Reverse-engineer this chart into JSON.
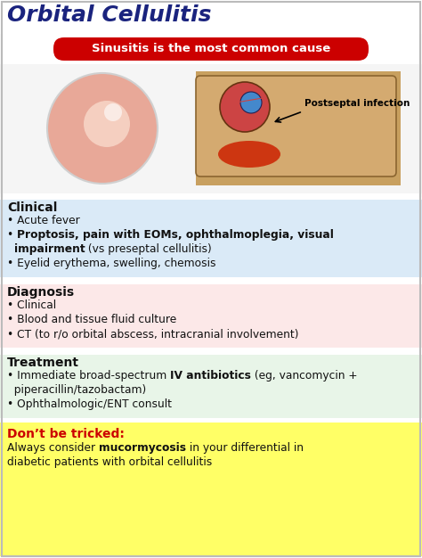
{
  "title": "Orbital Cellulitis",
  "title_color": "#1a237e",
  "banner_text": "Sinusitis is the most common cause",
  "banner_bg": "#cc0000",
  "banner_text_color": "#ffffff",
  "clinical_heading": "Clinical",
  "clinical_bg": "#daeaf7",
  "clinical_bullets": [
    {
      "parts": [
        {
          "t": "• Acute fever",
          "b": false
        }
      ]
    },
    {
      "parts": [
        {
          "t": "• ",
          "b": false
        },
        {
          "t": "Proptosis, pain with EOMs, ophthalmoplegia, visual",
          "b": true
        }
      ]
    },
    {
      "parts": [
        {
          "t": "  ",
          "b": false
        },
        {
          "t": "impairment",
          "b": true
        },
        {
          "t": " (vs preseptal cellulitis)",
          "b": false
        }
      ]
    },
    {
      "parts": [
        {
          "t": "• Eyelid erythema, swelling, chemosis",
          "b": false
        }
      ]
    }
  ],
  "diagnosis_heading": "Diagnosis",
  "diagnosis_bg": "#fce8e8",
  "diagnosis_bullets": [
    {
      "parts": [
        {
          "t": "• Clinical",
          "b": false
        }
      ]
    },
    {
      "parts": [
        {
          "t": "• Blood and tissue fluid culture",
          "b": false
        }
      ]
    },
    {
      "parts": [
        {
          "t": "• CT (to r/o orbital abscess, intracranial involvement)",
          "b": false
        }
      ]
    }
  ],
  "treatment_heading": "Treatment",
  "treatment_bg": "#e8f5e8",
  "treatment_bullets": [
    {
      "parts": [
        {
          "t": "• Immediate broad-spectrum ",
          "b": false
        },
        {
          "t": "IV antibiotics",
          "b": true
        },
        {
          "t": " (eg, vancomycin +",
          "b": false
        }
      ]
    },
    {
      "parts": [
        {
          "t": "  piperacillin/tazobactam)",
          "b": false
        }
      ]
    },
    {
      "parts": [
        {
          "t": "• Ophthalmologic/ENT consult",
          "b": false
        }
      ]
    }
  ],
  "trick_label": "Don’t be tricked:",
  "trick_label_color": "#cc0000",
  "trick_bg": "#ffff66",
  "trick_lines": [
    {
      "parts": [
        {
          "t": "Always consider ",
          "b": false
        },
        {
          "t": "mucormycosis",
          "b": true
        },
        {
          "t": " in your differential in",
          "b": false
        }
      ]
    },
    {
      "parts": [
        {
          "t": "diabetic patients with orbital cellulitis",
          "b": false
        }
      ]
    }
  ],
  "bg_color": "#ffffff",
  "border_color": "#bbbbbb",
  "img_bg": "#f5f5f5",
  "postseptal_text": "Postseptal infection"
}
